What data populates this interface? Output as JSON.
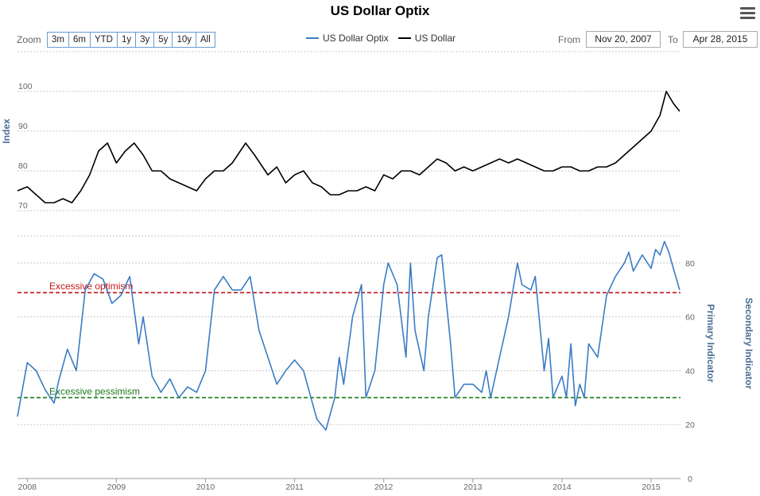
{
  "title": "US Dollar Optix",
  "menu_icon": "hamburger-menu-icon",
  "zoom": {
    "label": "Zoom",
    "buttons": [
      "3m",
      "6m",
      "YTD",
      "1y",
      "3y",
      "5y",
      "10y",
      "All"
    ]
  },
  "range": {
    "from_label": "From",
    "from_value": "Nov 20, 2007",
    "to_label": "To",
    "to_value": "Apr 28, 2015"
  },
  "colors": {
    "optix": "#3a7cc4",
    "dollar": "#000000",
    "optimism": "#c0171b",
    "pessimism": "#1a7a1a",
    "grid": "#c8c8c8"
  },
  "chart_data": [
    {
      "type": "line",
      "series": [
        {
          "name": "US Dollar",
          "x": [
            2007.89,
            2008.0,
            2008.1,
            2008.2,
            2008.3,
            2008.4,
            2008.5,
            2008.6,
            2008.7,
            2008.8,
            2008.9,
            2009.0,
            2009.1,
            2009.2,
            2009.3,
            2009.4,
            2009.5,
            2009.6,
            2009.7,
            2009.8,
            2009.9,
            2010.0,
            2010.1,
            2010.2,
            2010.3,
            2010.45,
            2010.55,
            2010.7,
            2010.8,
            2010.9,
            2011.0,
            2011.1,
            2011.2,
            2011.3,
            2011.4,
            2011.5,
            2011.6,
            2011.7,
            2011.8,
            2011.9,
            2012.0,
            2012.1,
            2012.2,
            2012.3,
            2012.4,
            2012.5,
            2012.6,
            2012.7,
            2012.8,
            2012.9,
            2013.0,
            2013.1,
            2013.2,
            2013.3,
            2013.4,
            2013.5,
            2013.6,
            2013.7,
            2013.8,
            2013.9,
            2014.0,
            2014.1,
            2014.2,
            2014.3,
            2014.4,
            2014.5,
            2014.6,
            2014.7,
            2014.8,
            2014.9,
            2015.0,
            2015.1,
            2015.17,
            2015.25,
            2015.32
          ],
          "values": [
            75,
            76,
            74,
            72,
            72,
            73,
            72,
            75,
            79,
            85,
            87,
            82,
            85,
            87,
            84,
            80,
            80,
            78,
            77,
            76,
            75,
            78,
            80,
            80,
            82,
            87,
            84,
            79,
            81,
            77,
            79,
            80,
            77,
            76,
            74,
            74,
            75,
            75,
            76,
            75,
            79,
            78,
            80,
            80,
            79,
            81,
            83,
            82,
            80,
            81,
            80,
            81,
            82,
            83,
            82,
            83,
            82,
            81,
            80,
            80,
            81,
            81,
            80,
            80,
            81,
            81,
            82,
            84,
            86,
            88,
            90,
            94,
            100,
            97,
            95
          ]
        }
      ],
      "ylabel": "Index",
      "yticks": [
        70,
        80,
        90,
        100
      ],
      "ylim": [
        70,
        110
      ],
      "xlim": [
        2007.89,
        2015.33
      ],
      "grid": "on",
      "legend_placement": "top"
    },
    {
      "type": "line",
      "series": [
        {
          "name": "US Dollar Optix",
          "x": [
            2007.89,
            2008.0,
            2008.1,
            2008.2,
            2008.3,
            2008.35,
            2008.45,
            2008.55,
            2008.65,
            2008.75,
            2008.85,
            2008.95,
            2009.05,
            2009.15,
            2009.25,
            2009.3,
            2009.4,
            2009.5,
            2009.6,
            2009.7,
            2009.8,
            2009.9,
            2010.0,
            2010.1,
            2010.2,
            2010.3,
            2010.4,
            2010.5,
            2010.6,
            2010.7,
            2010.8,
            2010.9,
            2011.0,
            2011.1,
            2011.2,
            2011.25,
            2011.35,
            2011.45,
            2011.5,
            2011.55,
            2011.65,
            2011.75,
            2011.8,
            2011.9,
            2012.0,
            2012.05,
            2012.15,
            2012.25,
            2012.3,
            2012.35,
            2012.45,
            2012.5,
            2012.6,
            2012.65,
            2012.75,
            2012.8,
            2012.9,
            2013.0,
            2013.1,
            2013.15,
            2013.2,
            2013.3,
            2013.4,
            2013.5,
            2013.55,
            2013.65,
            2013.7,
            2013.8,
            2013.85,
            2013.9,
            2014.0,
            2014.05,
            2014.1,
            2014.15,
            2014.2,
            2014.25,
            2014.3,
            2014.4,
            2014.5,
            2014.6,
            2014.7,
            2014.75,
            2014.8,
            2014.9,
            2015.0,
            2015.05,
            2015.1,
            2015.15,
            2015.2,
            2015.25,
            2015.32
          ],
          "values": [
            23,
            43,
            40,
            33,
            28,
            36,
            48,
            40,
            70,
            76,
            74,
            65,
            68,
            75,
            50,
            60,
            38,
            32,
            37,
            30,
            34,
            32,
            40,
            70,
            75,
            70,
            70,
            75,
            55,
            45,
            35,
            40,
            44,
            40,
            28,
            22,
            18,
            30,
            45,
            35,
            60,
            72,
            30,
            40,
            72,
            80,
            72,
            45,
            80,
            55,
            40,
            60,
            82,
            83,
            50,
            30,
            35,
            35,
            32,
            40,
            30,
            45,
            60,
            80,
            72,
            70,
            75,
            40,
            52,
            30,
            38,
            30,
            50,
            27,
            35,
            30,
            50,
            45,
            68,
            75,
            80,
            84,
            77,
            83,
            78,
            85,
            83,
            88,
            84,
            78,
            70
          ]
        }
      ],
      "ylabel": "Primary Indicator",
      "y2label": "Secondary Indicator",
      "yticks": [
        0,
        20,
        40,
        60,
        80
      ],
      "ylim": [
        0,
        90
      ],
      "xlim": [
        2007.89,
        2015.33
      ],
      "xticks": [
        "2008",
        "2009",
        "2010",
        "2011",
        "2012",
        "2013",
        "2014",
        "2015"
      ],
      "annotations": [
        {
          "label": "Excessive optimism",
          "y": 69
        },
        {
          "label": "Excessive pessimism",
          "y": 30
        }
      ],
      "grid": "on"
    }
  ]
}
